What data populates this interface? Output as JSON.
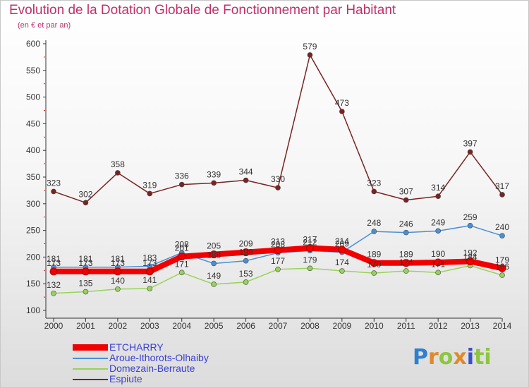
{
  "chart_data": {
    "type": "line",
    "title": "Evolution de la Dotation Globale de Fonctionnement par Habitant",
    "subtitle": "(en € et par an)",
    "xlabel": "",
    "ylabel": "",
    "ylim": [
      100,
      600
    ],
    "yticks": [
      100,
      150,
      200,
      250,
      300,
      350,
      400,
      450,
      500,
      550,
      600
    ],
    "categories": [
      "2000",
      "2001",
      "2002",
      "2003",
      "2004",
      "2005",
      "2006",
      "2007",
      "2008",
      "2009",
      "2010",
      "2011",
      "2012",
      "2013",
      "2014"
    ],
    "grid": false,
    "legend_position": "bottom-left",
    "series": [
      {
        "name": "Espiute",
        "color": "#7a2323",
        "values": [
          323,
          302,
          358,
          319,
          336,
          339,
          344,
          330,
          579,
          473,
          323,
          307,
          314,
          397,
          317
        ]
      },
      {
        "name": "Domezain-Berraute",
        "color": "#98d25a",
        "values": [
          132,
          135,
          140,
          141,
          171,
          149,
          153,
          177,
          179,
          174,
          170,
          174,
          171,
          184,
          166
        ]
      },
      {
        "name": "Aroue-Ithorots-Olhaiby",
        "color": "#4a8fd6",
        "values": [
          181,
          181,
          181,
          183,
          208,
          188,
          193,
          208,
          212,
          209,
          248,
          246,
          249,
          259,
          240
        ]
      },
      {
        "name": "ETCHARRY",
        "color": "#f00000",
        "values": [
          173,
          173,
          173,
          173,
          201,
          205,
          209,
          213,
          217,
          214,
          189,
          189,
          190,
          192,
          179
        ]
      }
    ],
    "legend_order": [
      "ETCHARRY",
      "Aroue-Ithorots-Olhaiby",
      "Domezain-Berraute",
      "Espiute"
    ]
  },
  "logo": {
    "p1": "P",
    "p2": "r",
    "p3": "o",
    "p4": "x",
    "p5": "i",
    "p6": "ti"
  }
}
